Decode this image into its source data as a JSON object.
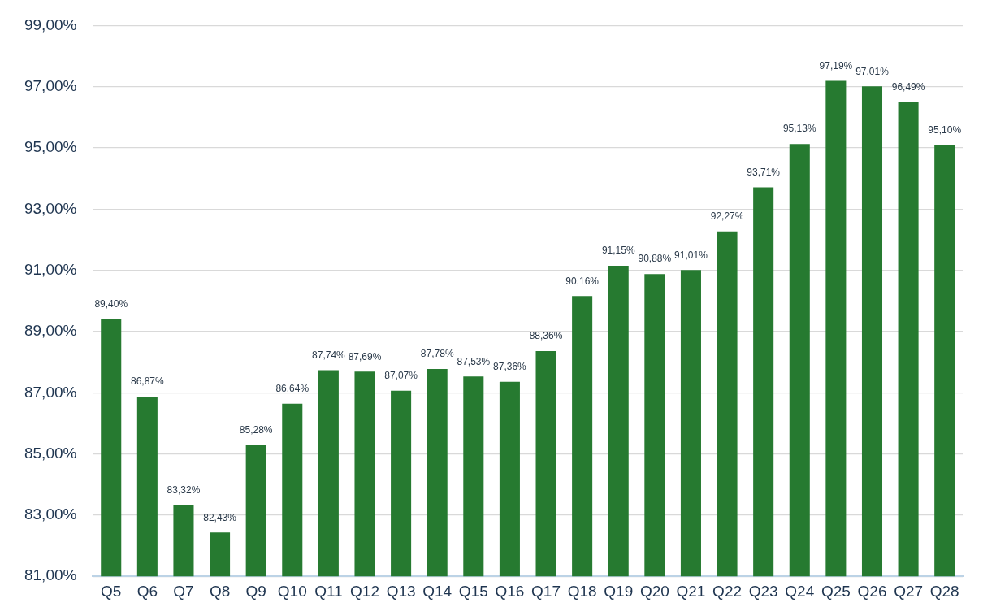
{
  "chart_data": {
    "type": "bar",
    "categories": [
      "Q5",
      "Q6",
      "Q7",
      "Q8",
      "Q9",
      "Q10",
      "Q11",
      "Q12",
      "Q13",
      "Q14",
      "Q15",
      "Q16",
      "Q17",
      "Q18",
      "Q19",
      "Q20",
      "Q21",
      "Q22",
      "Q23",
      "Q24",
      "Q25",
      "Q26",
      "Q27",
      "Q28"
    ],
    "values": [
      89.4,
      86.87,
      83.32,
      82.43,
      85.28,
      86.64,
      87.74,
      87.69,
      87.07,
      87.78,
      87.53,
      87.36,
      88.36,
      90.16,
      91.15,
      90.88,
      91.01,
      92.27,
      93.71,
      95.13,
      97.19,
      97.01,
      96.49,
      95.1
    ],
    "value_labels": [
      "89,40%",
      "86,87%",
      "83,32%",
      "82,43%",
      "85,28%",
      "86,64%",
      "87,74%",
      "87,69%",
      "87,07%",
      "87,78%",
      "87,53%",
      "87,36%",
      "88,36%",
      "90,16%",
      "91,15%",
      "90,88%",
      "91,01%",
      "92,27%",
      "93,71%",
      "95,13%",
      "97,19%",
      "97,01%",
      "96,49%",
      "95,10%"
    ],
    "color": "#267a30",
    "ylim": [
      81,
      99
    ],
    "yticks": [
      {
        "value": 81,
        "label": "81,00%"
      },
      {
        "value": 83,
        "label": "83,00%"
      },
      {
        "value": 85,
        "label": "85,00%"
      },
      {
        "value": 87,
        "label": "87,00%"
      },
      {
        "value": 89,
        "label": "89,00%"
      },
      {
        "value": 91,
        "label": "91,00%"
      },
      {
        "value": 93,
        "label": "93,00%"
      },
      {
        "value": 95,
        "label": "95,00%"
      },
      {
        "value": 97,
        "label": "97,00%"
      },
      {
        "value": 99,
        "label": "99,00%"
      }
    ],
    "grid": "y"
  }
}
